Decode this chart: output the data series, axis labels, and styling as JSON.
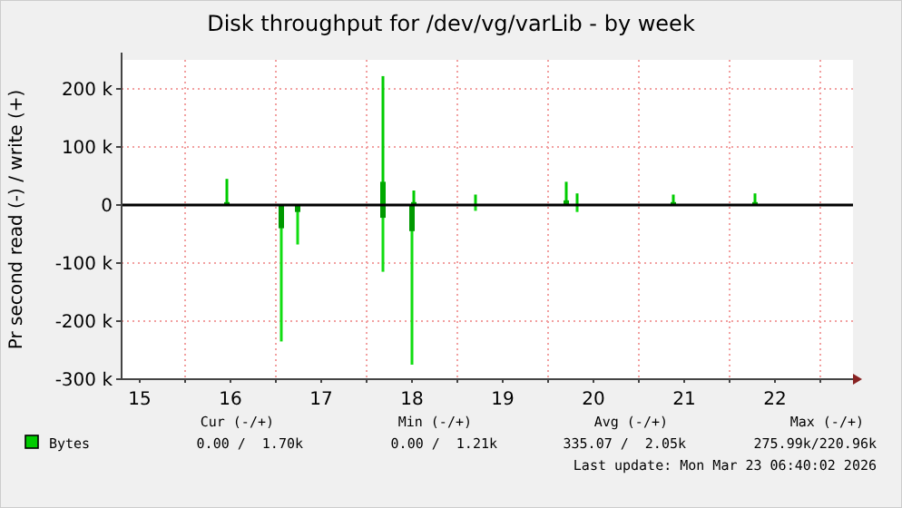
{
  "chart_data": {
    "type": "bar",
    "title": "Disk throughput for /dev/vg/varLib - by week",
    "ylabel": "Pr second read (-) / write (+)",
    "xlim": [
      15.3,
      23.36
    ],
    "ylim": [
      -300000,
      250000
    ],
    "xticks": [
      {
        "value": 15.5,
        "label": "15"
      },
      {
        "value": 16,
        "label": null
      },
      {
        "value": 16.5,
        "label": "16"
      },
      {
        "value": 17,
        "label": null
      },
      {
        "value": 17.5,
        "label": "17"
      },
      {
        "value": 18,
        "label": null
      },
      {
        "value": 18.5,
        "label": "18"
      },
      {
        "value": 19,
        "label": null
      },
      {
        "value": 19.5,
        "label": "19"
      },
      {
        "value": 20,
        "label": null
      },
      {
        "value": 20.5,
        "label": "20"
      },
      {
        "value": 21,
        "label": null
      },
      {
        "value": 21.5,
        "label": "21"
      },
      {
        "value": 22,
        "label": null
      },
      {
        "value": 22.5,
        "label": "22"
      },
      {
        "value": 23,
        "label": null
      }
    ],
    "yticks": [
      {
        "value": -300000,
        "label": "-300 k"
      },
      {
        "value": -200000,
        "label": "-200 k"
      },
      {
        "value": -100000,
        "label": "-100 k"
      },
      0,
      {
        "value": 100000,
        "label": "100 k"
      },
      {
        "value": 200000,
        "label": "200 k"
      }
    ],
    "grid": true,
    "legend": "bottom",
    "ref_lines": [
      {
        "axis": "y",
        "value": 0,
        "color": "#000000"
      }
    ],
    "series": [
      {
        "name": "Bytes",
        "color": "#00cc00",
        "x": [
          16.46,
          18.18,
          18.52,
          19.2,
          20.2,
          20.32,
          21.38,
          22.28
        ],
        "values": [
          45000,
          222000,
          25000,
          18000,
          40000,
          20000,
          18000,
          20000
        ]
      },
      {
        "color": "#11dd11",
        "x": [
          17.06,
          17.24,
          18.18,
          18.5,
          19.2,
          20.32
        ],
        "values": [
          -235000,
          -68000,
          -115000,
          -275000,
          -10000,
          -12000
        ]
      },
      {
        "color": "#00aa00",
        "x": [
          16.46,
          18.18,
          18.52,
          20.2,
          21.38,
          22.28
        ],
        "values": [
          5000,
          40000,
          5000,
          8000,
          5000,
          5000
        ]
      },
      {
        "color": "#009900",
        "x": [
          17.06,
          17.24,
          18.18,
          18.5
        ],
        "values": [
          -40000,
          -12000,
          -22000,
          -45000
        ]
      }
    ],
    "annotations": [
      "Cur (-/+)",
      "Min (-/+)",
      "Avg (-/+)",
      "Max (-/+)",
      "0.00 /  1.70k",
      "0.00 /  1.21k",
      "335.07 /  2.05k",
      "275.99k/220.96k",
      "Last update: Mon Mar 23 06:40:02 2026"
    ]
  }
}
